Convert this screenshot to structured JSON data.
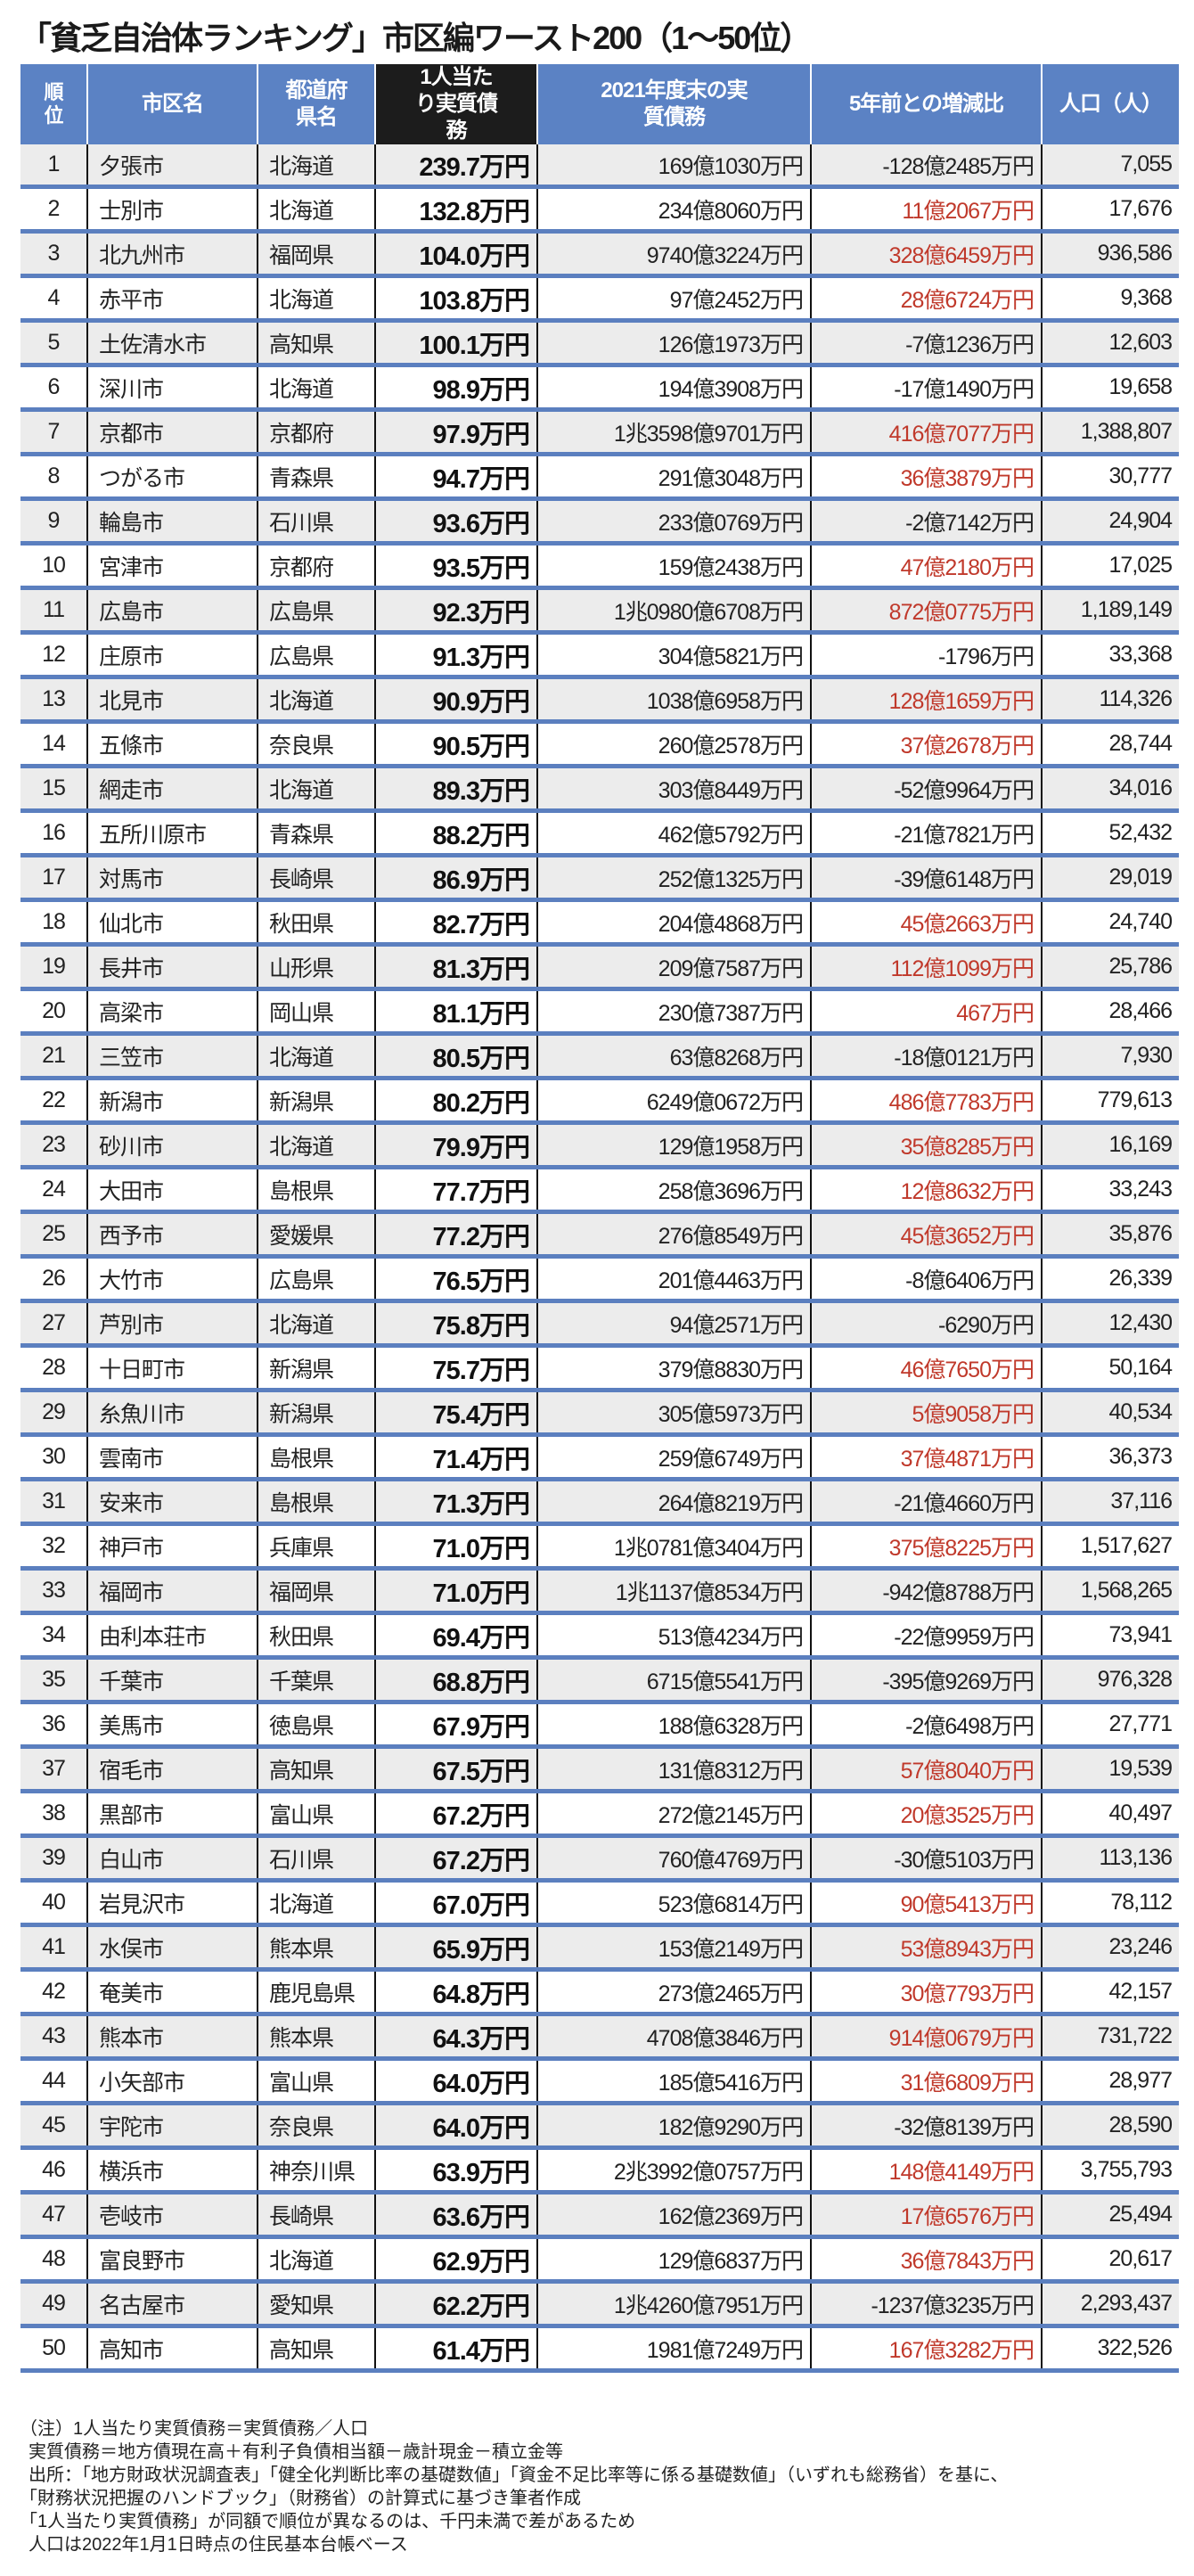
{
  "title": "「貧乏自治体ランキング」市区編ワースト200（1〜50位）",
  "colors": {
    "header_blue": "#5b82c4",
    "header_highlight": "#1c1c1c",
    "increase_red": "#c0392b",
    "row_alt": "#ececec"
  },
  "headers": [
    "順位",
    "市区名",
    "都道府県名",
    "1人当たり実質債務",
    "2021年度末の実質債務",
    "5年前との増減比",
    "人口（人）"
  ],
  "rows": [
    [
      "1",
      "夕張市",
      "北海道",
      "239.7万円",
      "169億1030万円",
      "-128億2485万円",
      "7,055"
    ],
    [
      "2",
      "士別市",
      "北海道",
      "132.8万円",
      "234億8060万円",
      "11億2067万円",
      "17,676"
    ],
    [
      "3",
      "北九州市",
      "福岡県",
      "104.0万円",
      "9740億3224万円",
      "328億6459万円",
      "936,586"
    ],
    [
      "4",
      "赤平市",
      "北海道",
      "103.8万円",
      "97億2452万円",
      "28億6724万円",
      "9,368"
    ],
    [
      "5",
      "土佐清水市",
      "高知県",
      "100.1万円",
      "126億1973万円",
      "-7億1236万円",
      "12,603"
    ],
    [
      "6",
      "深川市",
      "北海道",
      "98.9万円",
      "194億3908万円",
      "-17億1490万円",
      "19,658"
    ],
    [
      "7",
      "京都市",
      "京都府",
      "97.9万円",
      "1兆3598億9701万円",
      "416億7077万円",
      "1,388,807"
    ],
    [
      "8",
      "つがる市",
      "青森県",
      "94.7万円",
      "291億3048万円",
      "36億3879万円",
      "30,777"
    ],
    [
      "9",
      "輪島市",
      "石川県",
      "93.6万円",
      "233億0769万円",
      "-2億7142万円",
      "24,904"
    ],
    [
      "10",
      "宮津市",
      "京都府",
      "93.5万円",
      "159億2438万円",
      "47億2180万円",
      "17,025"
    ],
    [
      "11",
      "広島市",
      "広島県",
      "92.3万円",
      "1兆0980億6708万円",
      "872億0775万円",
      "1,189,149"
    ],
    [
      "12",
      "庄原市",
      "広島県",
      "91.3万円",
      "304億5821万円",
      "-1796万円",
      "33,368"
    ],
    [
      "13",
      "北見市",
      "北海道",
      "90.9万円",
      "1038億6958万円",
      "128億1659万円",
      "114,326"
    ],
    [
      "14",
      "五條市",
      "奈良県",
      "90.5万円",
      "260億2578万円",
      "37億2678万円",
      "28,744"
    ],
    [
      "15",
      "網走市",
      "北海道",
      "89.3万円",
      "303億8449万円",
      "-52億9964万円",
      "34,016"
    ],
    [
      "16",
      "五所川原市",
      "青森県",
      "88.2万円",
      "462億5792万円",
      "-21億7821万円",
      "52,432"
    ],
    [
      "17",
      "対馬市",
      "長崎県",
      "86.9万円",
      "252億1325万円",
      "-39億6148万円",
      "29,019"
    ],
    [
      "18",
      "仙北市",
      "秋田県",
      "82.7万円",
      "204億4868万円",
      "45億2663万円",
      "24,740"
    ],
    [
      "19",
      "長井市",
      "山形県",
      "81.3万円",
      "209億7587万円",
      "112億1099万円",
      "25,786"
    ],
    [
      "20",
      "高梁市",
      "岡山県",
      "81.1万円",
      "230億7387万円",
      "467万円",
      "28,466"
    ],
    [
      "21",
      "三笠市",
      "北海道",
      "80.5万円",
      "63億8268万円",
      "-18億0121万円",
      "7,930"
    ],
    [
      "22",
      "新潟市",
      "新潟県",
      "80.2万円",
      "6249億0672万円",
      "486億7783万円",
      "779,613"
    ],
    [
      "23",
      "砂川市",
      "北海道",
      "79.9万円",
      "129億1958万円",
      "35億8285万円",
      "16,169"
    ],
    [
      "24",
      "大田市",
      "島根県",
      "77.7万円",
      "258億3696万円",
      "12億8632万円",
      "33,243"
    ],
    [
      "25",
      "西予市",
      "愛媛県",
      "77.2万円",
      "276億8549万円",
      "45億3652万円",
      "35,876"
    ],
    [
      "26",
      "大竹市",
      "広島県",
      "76.5万円",
      "201億4463万円",
      "-8億6406万円",
      "26,339"
    ],
    [
      "27",
      "芦別市",
      "北海道",
      "75.8万円",
      "94億2571万円",
      "-6290万円",
      "12,430"
    ],
    [
      "28",
      "十日町市",
      "新潟県",
      "75.7万円",
      "379億8830万円",
      "46億7650万円",
      "50,164"
    ],
    [
      "29",
      "糸魚川市",
      "新潟県",
      "75.4万円",
      "305億5973万円",
      "5億9058万円",
      "40,534"
    ],
    [
      "30",
      "雲南市",
      "島根県",
      "71.4万円",
      "259億6749万円",
      "37億4871万円",
      "36,373"
    ],
    [
      "31",
      "安来市",
      "島根県",
      "71.3万円",
      "264億8219万円",
      "-21億4660万円",
      "37,116"
    ],
    [
      "32",
      "神戸市",
      "兵庫県",
      "71.0万円",
      "1兆0781億3404万円",
      "375億8225万円",
      "1,517,627"
    ],
    [
      "33",
      "福岡市",
      "福岡県",
      "71.0万円",
      "1兆1137億8534万円",
      "-942億8788万円",
      "1,568,265"
    ],
    [
      "34",
      "由利本荘市",
      "秋田県",
      "69.4万円",
      "513億4234万円",
      "-22億9959万円",
      "73,941"
    ],
    [
      "35",
      "千葉市",
      "千葉県",
      "68.8万円",
      "6715億5541万円",
      "-395億9269万円",
      "976,328"
    ],
    [
      "36",
      "美馬市",
      "徳島県",
      "67.9万円",
      "188億6328万円",
      "-2億6498万円",
      "27,771"
    ],
    [
      "37",
      "宿毛市",
      "高知県",
      "67.5万円",
      "131億8312万円",
      "57億8040万円",
      "19,539"
    ],
    [
      "38",
      "黒部市",
      "富山県",
      "67.2万円",
      "272億2145万円",
      "20億3525万円",
      "40,497"
    ],
    [
      "39",
      "白山市",
      "石川県",
      "67.2万円",
      "760億4769万円",
      "-30億5103万円",
      "113,136"
    ],
    [
      "40",
      "岩見沢市",
      "北海道",
      "67.0万円",
      "523億6814万円",
      "90億5413万円",
      "78,112"
    ],
    [
      "41",
      "水俣市",
      "熊本県",
      "65.9万円",
      "153億2149万円",
      "53億8943万円",
      "23,246"
    ],
    [
      "42",
      "奄美市",
      "鹿児島県",
      "64.8万円",
      "273億2465万円",
      "30億7793万円",
      "42,157"
    ],
    [
      "43",
      "熊本市",
      "熊本県",
      "64.3万円",
      "4708億3846万円",
      "914億0679万円",
      "731,722"
    ],
    [
      "44",
      "小矢部市",
      "富山県",
      "64.0万円",
      "185億5416万円",
      "31億6809万円",
      "28,977"
    ],
    [
      "45",
      "宇陀市",
      "奈良県",
      "64.0万円",
      "182億9290万円",
      "-32億8139万円",
      "28,590"
    ],
    [
      "46",
      "横浜市",
      "神奈川県",
      "63.9万円",
      "2兆3992億0757万円",
      "148億4149万円",
      "3,755,793"
    ],
    [
      "47",
      "壱岐市",
      "長崎県",
      "63.6万円",
      "162億2369万円",
      "17億6576万円",
      "25,494"
    ],
    [
      "48",
      "富良野市",
      "北海道",
      "62.9万円",
      "129億6837万円",
      "36億7843万円",
      "20,617"
    ],
    [
      "49",
      "名古屋市",
      "愛知県",
      "62.2万円",
      "1兆4260億7951万円",
      "-1237億3235万円",
      "2,293,437"
    ],
    [
      "50",
      "高知市",
      "高知県",
      "61.4万円",
      "1981億7249万円",
      "167億3282万円",
      "322,526"
    ]
  ],
  "notes": [
    "（注）1人当たり実質債務＝実質債務／人口",
    "実質債務＝地方債現在高＋有利子負債相当額－歳計現金－積立金等",
    "出所：「地方財政状況調査表」「健全化判断比率の基礎数値」「資金不足比率等に係る基礎数値」（いずれも総務省）を基に、",
    "「財務状況把握のハンドブック」（財務省）の計算式に基づき筆者作成",
    "「1人当たり実質債務」が同額で順位が異なるのは、千円未満で差があるため",
    "人口は2022年1月1日時点の住民基本台帳ベース"
  ]
}
